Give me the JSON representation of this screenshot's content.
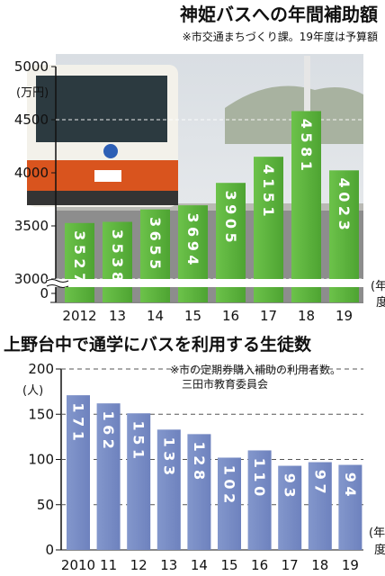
{
  "chart_data": [
    {
      "type": "bar",
      "title": "神姫バスへの年間補助額",
      "note": "※市交通まちづくり課。19年度は予算額",
      "ylabel": "(万円)",
      "xlabel": "(年度)",
      "categories": [
        "2012",
        "13",
        "14",
        "15",
        "16",
        "17",
        "18",
        "19"
      ],
      "values": [
        3527,
        3538,
        3655,
        3694,
        3905,
        4151,
        4581,
        4023
      ],
      "value_labels": [
        "3527",
        "3538",
        "3655",
        "3694",
        "3905",
        "4151",
        "4581",
        "4023"
      ],
      "yticks": [
        "5000",
        "4500",
        "4000",
        "3500",
        "3000",
        "0"
      ],
      "ylim": [
        3000,
        5000
      ],
      "axis_break": true,
      "bar_color": "#5fb83f",
      "background": "photo of a bus"
    },
    {
      "type": "bar",
      "title": "上野台中で通学にバスを利用する生徒数",
      "note_lines": [
        "※市の定期券購入補助の利用者数。",
        "三田市教育委員会"
      ],
      "ylabel": "(人)",
      "xlabel": "(年度)",
      "categories": [
        "2010",
        "11",
        "12",
        "13",
        "14",
        "15",
        "16",
        "17",
        "18",
        "19"
      ],
      "values": [
        171,
        162,
        151,
        133,
        128,
        102,
        110,
        93,
        97,
        94
      ],
      "value_labels": [
        "171",
        "162",
        "151",
        "133",
        "128",
        "102",
        "110",
        "93",
        "97",
        "94"
      ],
      "yticks": [
        "200",
        "150",
        "100",
        "50",
        "0"
      ],
      "ylim": [
        0,
        200
      ],
      "grid": true,
      "bar_color": "#7b8fc6"
    }
  ]
}
